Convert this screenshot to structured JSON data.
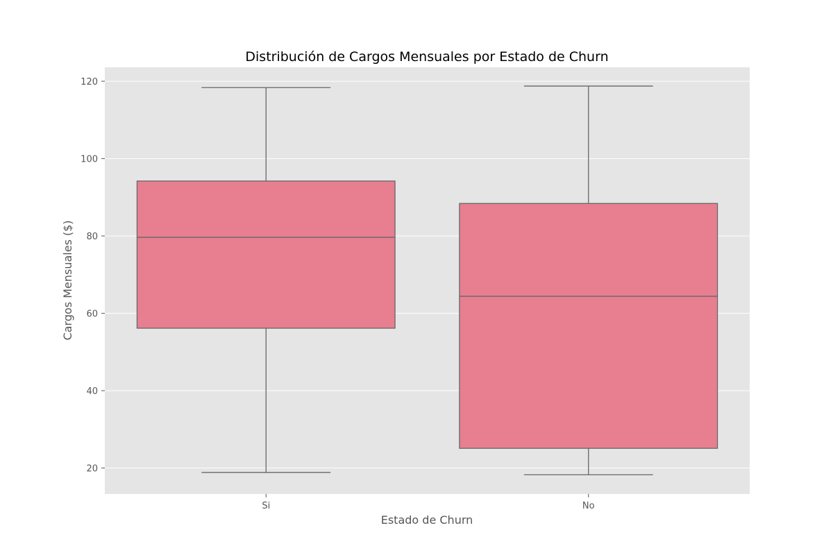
{
  "chart_data": {
    "type": "box",
    "title": "Distribución de Cargos Mensuales por Estado de Churn",
    "xlabel": "Estado de Churn",
    "ylabel": "Cargos Mensuales ($)",
    "categories": [
      "Si",
      "No"
    ],
    "boxes": [
      {
        "category": "Si",
        "whisker_low": 18.85,
        "q1": 56.15,
        "median": 79.65,
        "q3": 94.2,
        "whisker_high": 118.35
      },
      {
        "category": "No",
        "whisker_low": 18.25,
        "q1": 25.1,
        "median": 64.4,
        "q3": 88.4,
        "whisker_high": 118.75
      }
    ],
    "yticks": [
      20,
      40,
      60,
      80,
      100,
      120
    ],
    "ylim": [
      13.3,
      123.6
    ],
    "grid": true,
    "colors": {
      "plot_background": "#e5e5e5",
      "box_fill": "#e77f91",
      "box_line": "#666666",
      "grid": "#ffffff"
    }
  }
}
